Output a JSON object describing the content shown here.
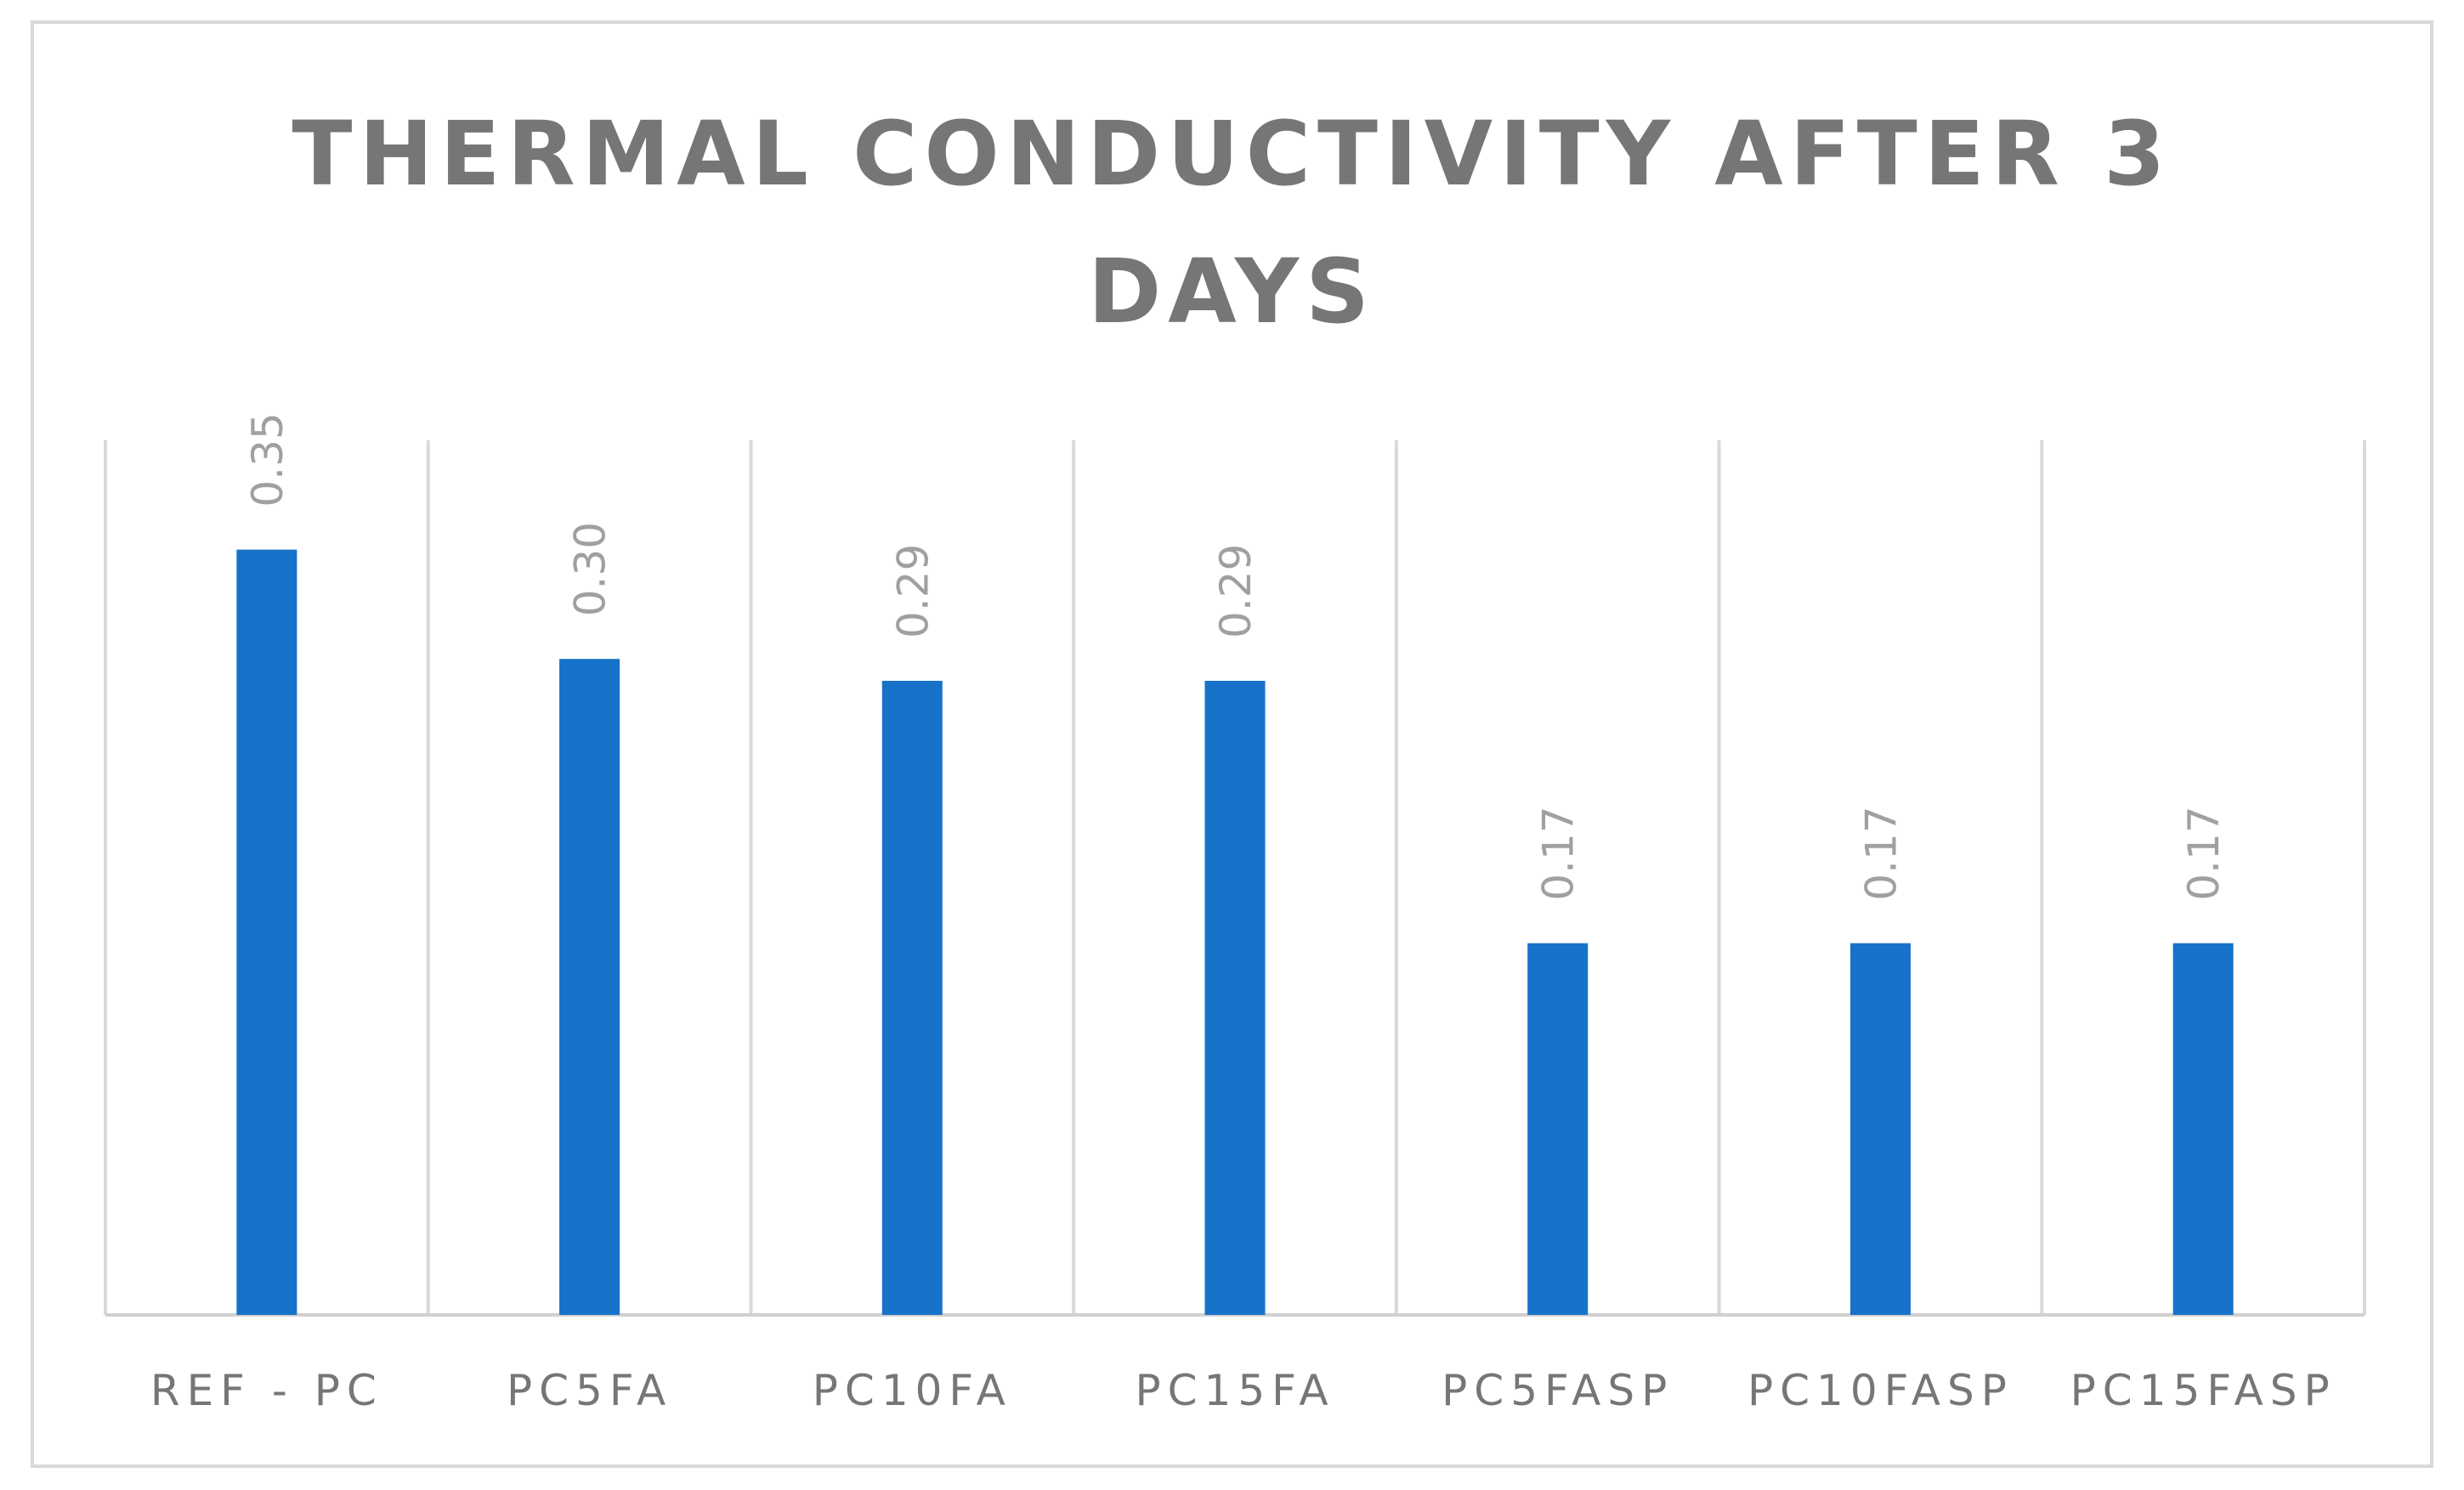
{
  "chart_data": {
    "type": "bar",
    "title": "THERMAL CONDUCTIVITY AFTER 3 DAYS",
    "title_lines": [
      "THERMAL CONDUCTIVITY AFTER 3",
      "DAYS"
    ],
    "categories": [
      "REF - PC",
      "PC5FA",
      "PC10FA",
      "PC15FA",
      "PC5FASP",
      "PC10FASP",
      "PC15FASP"
    ],
    "values": [
      0.35,
      0.3,
      0.29,
      0.29,
      0.17,
      0.17,
      0.17
    ],
    "data_labels": [
      "0.35",
      "0.30",
      "0.29",
      "0.29",
      "0.17",
      "0.17",
      "0.17"
    ],
    "xlabel": "",
    "ylabel": "",
    "ylim": [
      0,
      0.4
    ],
    "grid": "vertical",
    "legend": "none",
    "colors": {
      "bar": "#1772c9",
      "grid": "#d9d9d9",
      "axis": "#d0d0d0",
      "text": "#767676",
      "label": "#a0a0a0"
    }
  }
}
